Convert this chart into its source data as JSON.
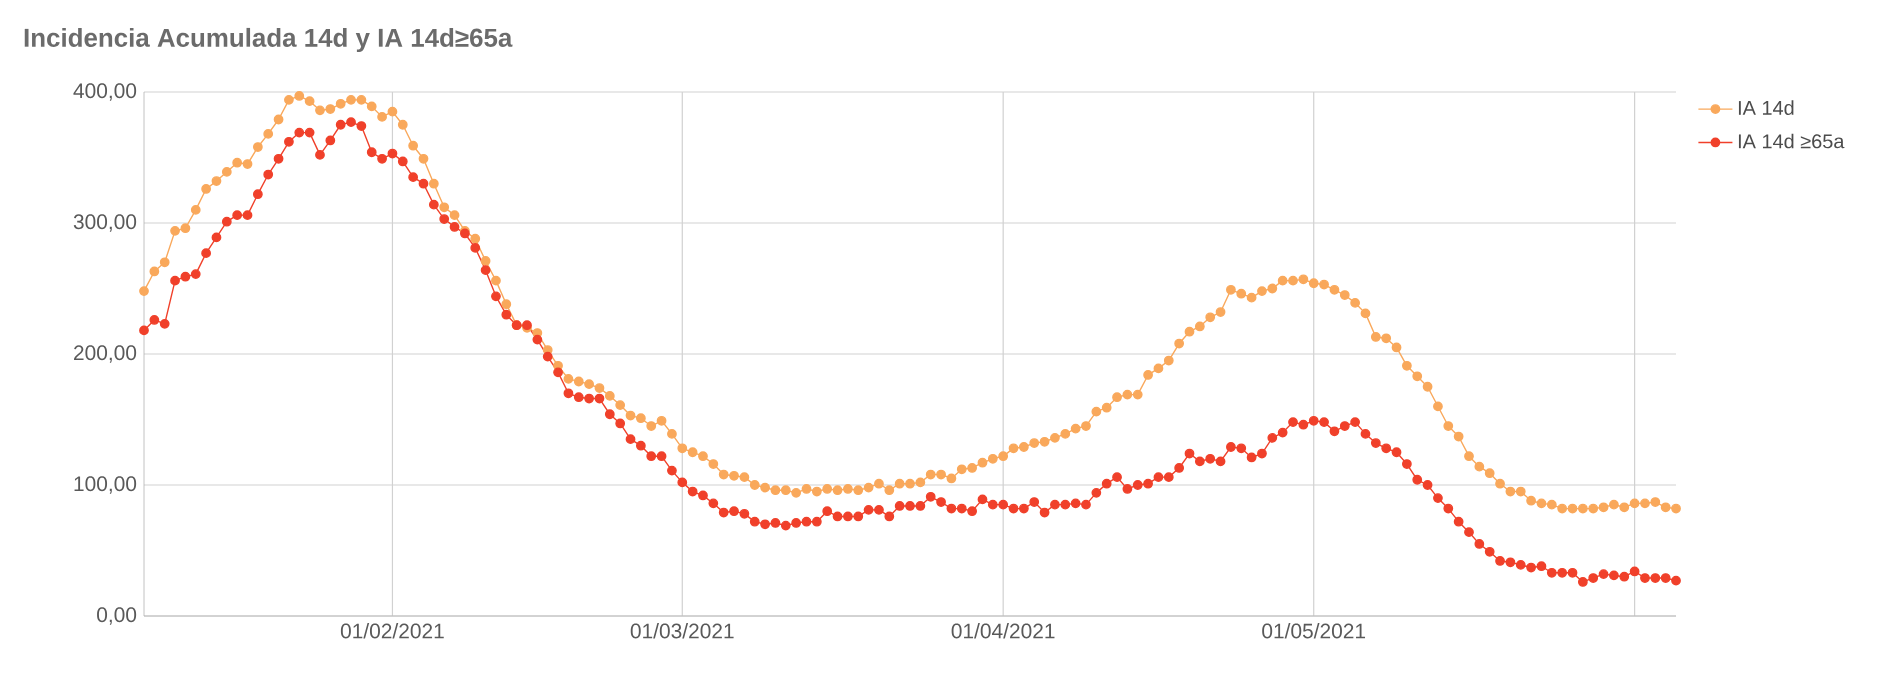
{
  "chart_data": {
    "type": "line",
    "title": "Incidencia Acumulada 14d y IA 14d≥65a",
    "x": [
      "2021-01-08",
      "2021-01-09",
      "2021-01-10",
      "2021-01-11",
      "2021-01-12",
      "2021-01-13",
      "2021-01-14",
      "2021-01-15",
      "2021-01-16",
      "2021-01-17",
      "2021-01-18",
      "2021-01-19",
      "2021-01-20",
      "2021-01-21",
      "2021-01-22",
      "2021-01-23",
      "2021-01-24",
      "2021-01-25",
      "2021-01-26",
      "2021-01-27",
      "2021-01-28",
      "2021-01-29",
      "2021-01-30",
      "2021-01-31",
      "2021-02-01",
      "2021-02-02",
      "2021-02-03",
      "2021-02-04",
      "2021-02-05",
      "2021-02-06",
      "2021-02-07",
      "2021-02-08",
      "2021-02-09",
      "2021-02-10",
      "2021-02-11",
      "2021-02-12",
      "2021-02-13",
      "2021-02-14",
      "2021-02-15",
      "2021-02-16",
      "2021-02-17",
      "2021-02-18",
      "2021-02-19",
      "2021-02-20",
      "2021-02-21",
      "2021-02-22",
      "2021-02-23",
      "2021-02-24",
      "2021-02-25",
      "2021-02-26",
      "2021-02-27",
      "2021-02-28",
      "2021-03-01",
      "2021-03-02",
      "2021-03-03",
      "2021-03-04",
      "2021-03-05",
      "2021-03-06",
      "2021-03-07",
      "2021-03-08",
      "2021-03-09",
      "2021-03-10",
      "2021-03-11",
      "2021-03-12",
      "2021-03-13",
      "2021-03-14",
      "2021-03-15",
      "2021-03-16",
      "2021-03-17",
      "2021-03-18",
      "2021-03-19",
      "2021-03-20",
      "2021-03-21",
      "2021-03-22",
      "2021-03-23",
      "2021-03-24",
      "2021-03-25",
      "2021-03-26",
      "2021-03-27",
      "2021-03-28",
      "2021-03-29",
      "2021-03-30",
      "2021-03-31",
      "2021-04-01",
      "2021-04-02",
      "2021-04-03",
      "2021-04-04",
      "2021-04-05",
      "2021-04-06",
      "2021-04-07",
      "2021-04-08",
      "2021-04-09",
      "2021-04-10",
      "2021-04-11",
      "2021-04-12",
      "2021-04-13",
      "2021-04-14",
      "2021-04-15",
      "2021-04-16",
      "2021-04-17",
      "2021-04-18",
      "2021-04-19",
      "2021-04-20",
      "2021-04-21",
      "2021-04-22",
      "2021-04-23",
      "2021-04-24",
      "2021-04-25",
      "2021-04-26",
      "2021-04-27",
      "2021-04-28",
      "2021-04-29",
      "2021-04-30",
      "2021-05-01",
      "2021-05-02",
      "2021-05-03",
      "2021-05-04",
      "2021-05-05",
      "2021-05-06",
      "2021-05-07",
      "2021-05-08",
      "2021-05-09",
      "2021-05-10",
      "2021-05-11",
      "2021-05-12",
      "2021-05-13",
      "2021-05-14",
      "2021-05-15",
      "2021-05-16",
      "2021-05-17",
      "2021-05-18",
      "2021-05-19",
      "2021-05-20",
      "2021-05-21",
      "2021-05-22",
      "2021-05-23",
      "2021-05-24",
      "2021-05-25",
      "2021-05-26",
      "2021-05-27",
      "2021-05-28",
      "2021-05-29",
      "2021-05-30",
      "2021-05-31",
      "2021-06-01",
      "2021-06-02",
      "2021-06-03",
      "2021-06-04",
      "2021-06-05"
    ],
    "series": [
      {
        "name": "IA 14d",
        "color": "#f9a85b",
        "values": [
          248,
          263,
          270,
          294,
          296,
          310,
          326,
          332,
          339,
          346,
          345,
          358,
          368,
          379,
          394,
          397,
          393,
          386,
          387,
          391,
          394,
          394,
          389,
          381,
          385,
          375,
          359,
          349,
          330,
          312,
          306,
          294,
          288,
          271,
          256,
          238,
          222,
          220,
          216,
          203,
          191,
          181,
          179,
          177,
          174,
          168,
          161,
          153,
          151,
          145,
          149,
          139,
          128,
          125,
          122,
          116,
          108,
          107,
          106,
          100,
          98,
          96,
          96,
          94,
          97,
          95,
          97,
          96,
          97,
          96,
          98,
          101,
          96,
          101,
          101,
          102,
          108,
          108,
          105,
          112,
          113,
          117,
          120,
          122,
          128,
          129,
          132,
          133,
          136,
          139,
          143,
          145,
          156,
          159,
          167,
          169,
          169,
          184,
          189,
          195,
          208,
          217,
          221,
          228,
          232,
          249,
          246,
          243,
          248,
          250,
          256,
          256,
          257,
          254,
          253,
          249,
          245,
          239,
          231,
          213,
          212,
          205,
          191,
          183,
          175,
          160,
          145,
          137,
          122,
          114,
          109,
          101,
          95,
          95,
          88,
          86,
          85,
          82,
          82,
          82,
          82,
          83,
          85,
          83,
          86,
          86,
          87,
          83,
          82
        ]
      },
      {
        "name": "IA 14d ≥65a",
        "color": "#f0402a",
        "values": [
          218,
          226,
          223,
          256,
          259,
          261,
          277,
          289,
          301,
          306,
          306,
          322,
          337,
          349,
          362,
          369,
          369,
          352,
          363,
          375,
          377,
          374,
          354,
          349,
          353,
          347,
          335,
          330,
          314,
          303,
          297,
          292,
          281,
          264,
          244,
          230,
          222,
          222,
          211,
          198,
          186,
          170,
          167,
          166,
          166,
          154,
          147,
          135,
          130,
          122,
          122,
          111,
          102,
          95,
          92,
          86,
          79,
          80,
          78,
          72,
          70,
          71,
          69,
          71,
          72,
          72,
          80,
          76,
          76,
          76,
          81,
          81,
          76,
          84,
          84,
          84,
          91,
          87,
          82,
          82,
          80,
          89,
          85,
          85,
          82,
          82,
          87,
          79,
          85,
          85,
          86,
          85,
          94,
          101,
          106,
          97,
          100,
          101,
          106,
          106,
          113,
          124,
          118,
          120,
          118,
          129,
          128,
          121,
          124,
          136,
          140,
          148,
          146,
          149,
          148,
          141,
          145,
          148,
          139,
          132,
          128,
          125,
          116,
          104,
          100,
          90,
          82,
          72,
          64,
          55,
          49,
          42,
          41,
          39,
          37,
          38,
          33,
          33,
          33,
          26,
          29,
          32,
          31,
          30,
          34,
          29,
          29,
          29,
          27
        ]
      }
    ],
    "xlim": [
      "2021-01-08",
      "2021-06-05"
    ],
    "xticks": [
      {
        "value": "2021-02-01",
        "label": "01/02/2021"
      },
      {
        "value": "2021-03-01",
        "label": "01/03/2021"
      },
      {
        "value": "2021-04-01",
        "label": "01/04/2021"
      },
      {
        "value": "2021-05-01",
        "label": "01/05/2021"
      },
      {
        "value": "2021-06-01",
        "label": null
      }
    ],
    "ylim": [
      0,
      400
    ],
    "yticks": [
      {
        "value": 0,
        "label": "0,00"
      },
      {
        "value": 100,
        "label": "100,00"
      },
      {
        "value": 200,
        "label": "200,00"
      },
      {
        "value": 300,
        "label": "300,00"
      },
      {
        "value": 400,
        "label": "400,00"
      }
    ],
    "grid": true,
    "legend": "top right",
    "marker": "circle",
    "line_style": "solid"
  }
}
